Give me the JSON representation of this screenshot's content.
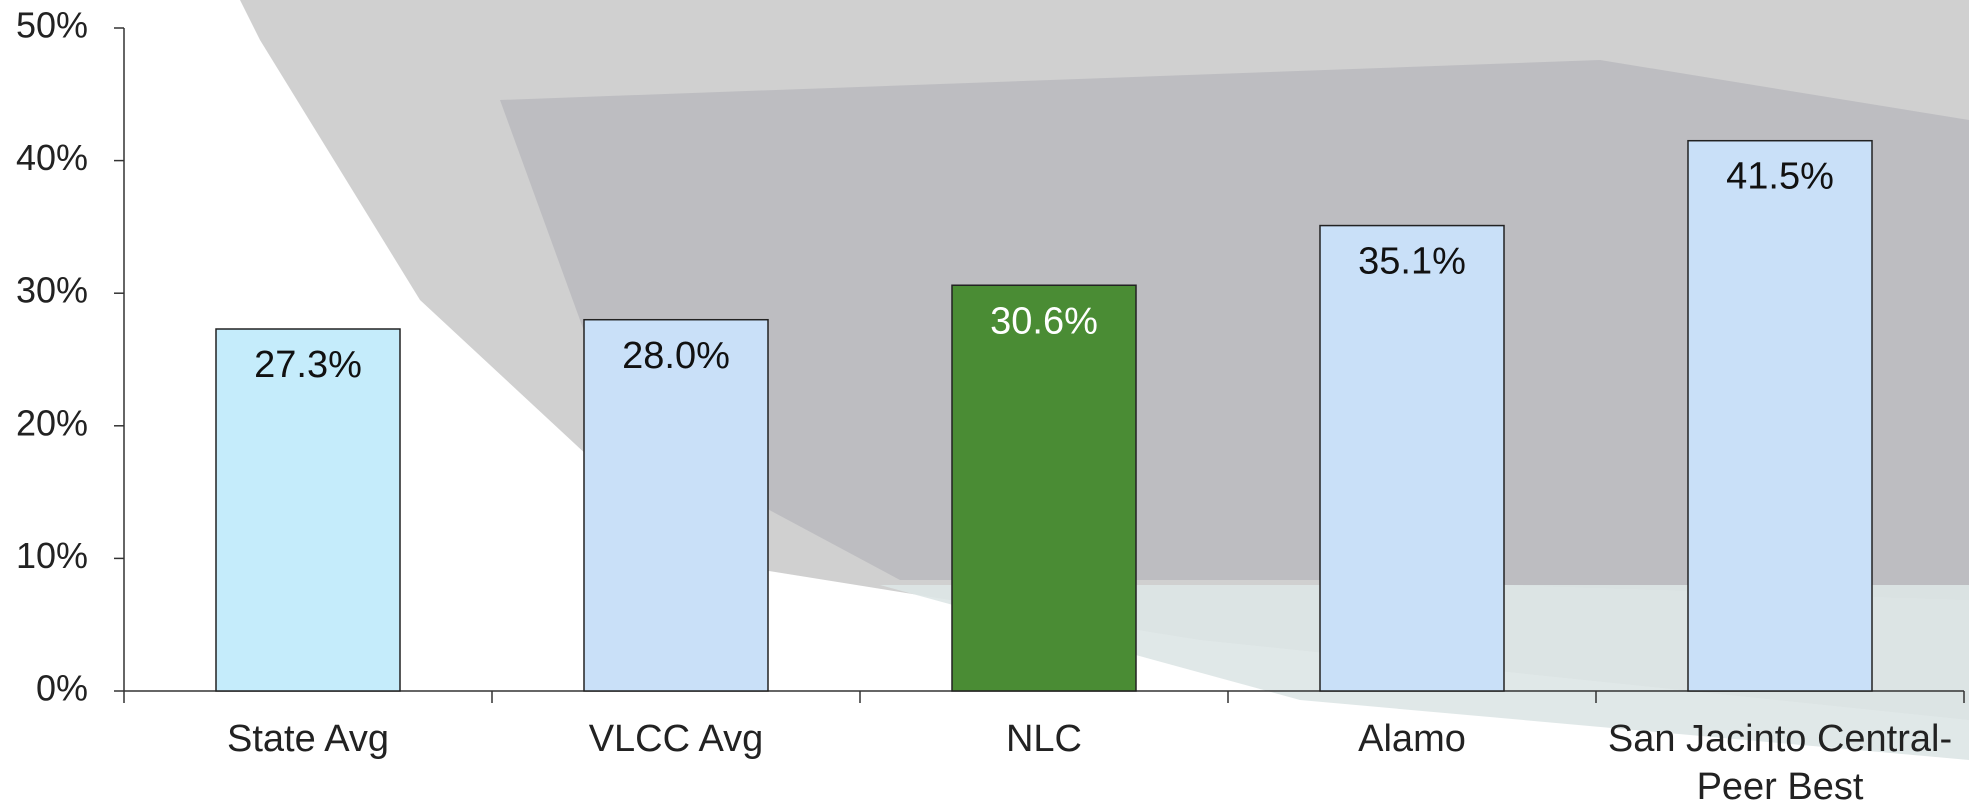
{
  "chart_data": {
    "type": "bar",
    "categories": [
      "State Avg",
      "VLCC Avg",
      "NLC",
      "Alamo",
      "San Jacinto Central-Peer Best"
    ],
    "values": [
      27.3,
      28.0,
      30.6,
      35.1,
      41.5
    ],
    "value_labels": [
      "27.3%",
      "28.0%",
      "30.6%",
      "35.1%",
      "41.5%"
    ],
    "colors": [
      "#c5ecfb",
      "#c9e0f8",
      "#4a8c34",
      "#c9e0f8",
      "#c9e0f8"
    ],
    "ylim": [
      0,
      50
    ],
    "yticks": [
      {
        "value": 0,
        "label": "0%"
      },
      {
        "value": 10,
        "label": "10%"
      },
      {
        "value": 20,
        "label": "20%"
      },
      {
        "value": 30,
        "label": "30%"
      },
      {
        "value": 40,
        "label": "40%"
      },
      {
        "value": 50,
        "label": "50%"
      }
    ]
  }
}
